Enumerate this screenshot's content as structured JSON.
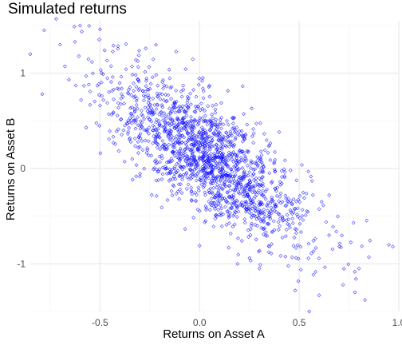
{
  "chart_data": {
    "type": "scatter",
    "title": "Simulated returns",
    "xlabel": "Returns on Asset A",
    "ylabel": "Returns on Asset B",
    "xlim": [
      -0.85,
      1.0
    ],
    "ylim": [
      -1.5,
      1.55
    ],
    "xticks": [
      -0.5,
      0.0,
      0.5,
      1.0
    ],
    "xtick_labels": [
      "-0.5",
      "0.0",
      "0.5",
      "1.0"
    ],
    "yticks": [
      -1,
      0,
      1
    ],
    "ytick_labels": [
      "-1",
      "0",
      "1"
    ],
    "grid": true,
    "legend": "none",
    "marker": "open-diamond",
    "point_color": "#0000ff",
    "n_points": 1700,
    "mean": [
      0.05,
      0.1
    ],
    "sd": [
      0.25,
      0.45
    ],
    "correlation": -0.75,
    "points": [
      [
        -0.85,
        1.2
      ],
      [
        -0.79,
        0.78
      ],
      [
        -0.78,
        1.45
      ],
      [
        -0.72,
        1.57
      ],
      [
        -0.7,
        1.3
      ],
      [
        -0.6,
        1.5
      ],
      [
        -0.5,
        1.46
      ],
      [
        -0.5,
        0.66
      ],
      [
        0.48,
        -1.28
      ],
      [
        0.55,
        -1.5
      ],
      [
        0.6,
        -1.33
      ],
      [
        0.72,
        -1.22
      ],
      [
        0.78,
        -1.3
      ],
      [
        0.83,
        -1.38
      ],
      [
        0.8,
        -1.05
      ],
      [
        0.85,
        -0.93
      ],
      [
        0.95,
        -0.8
      ],
      [
        0.97,
        -0.82
      ],
      [
        0.3,
        -1.05
      ],
      [
        0.65,
        -0.7
      ]
    ]
  }
}
